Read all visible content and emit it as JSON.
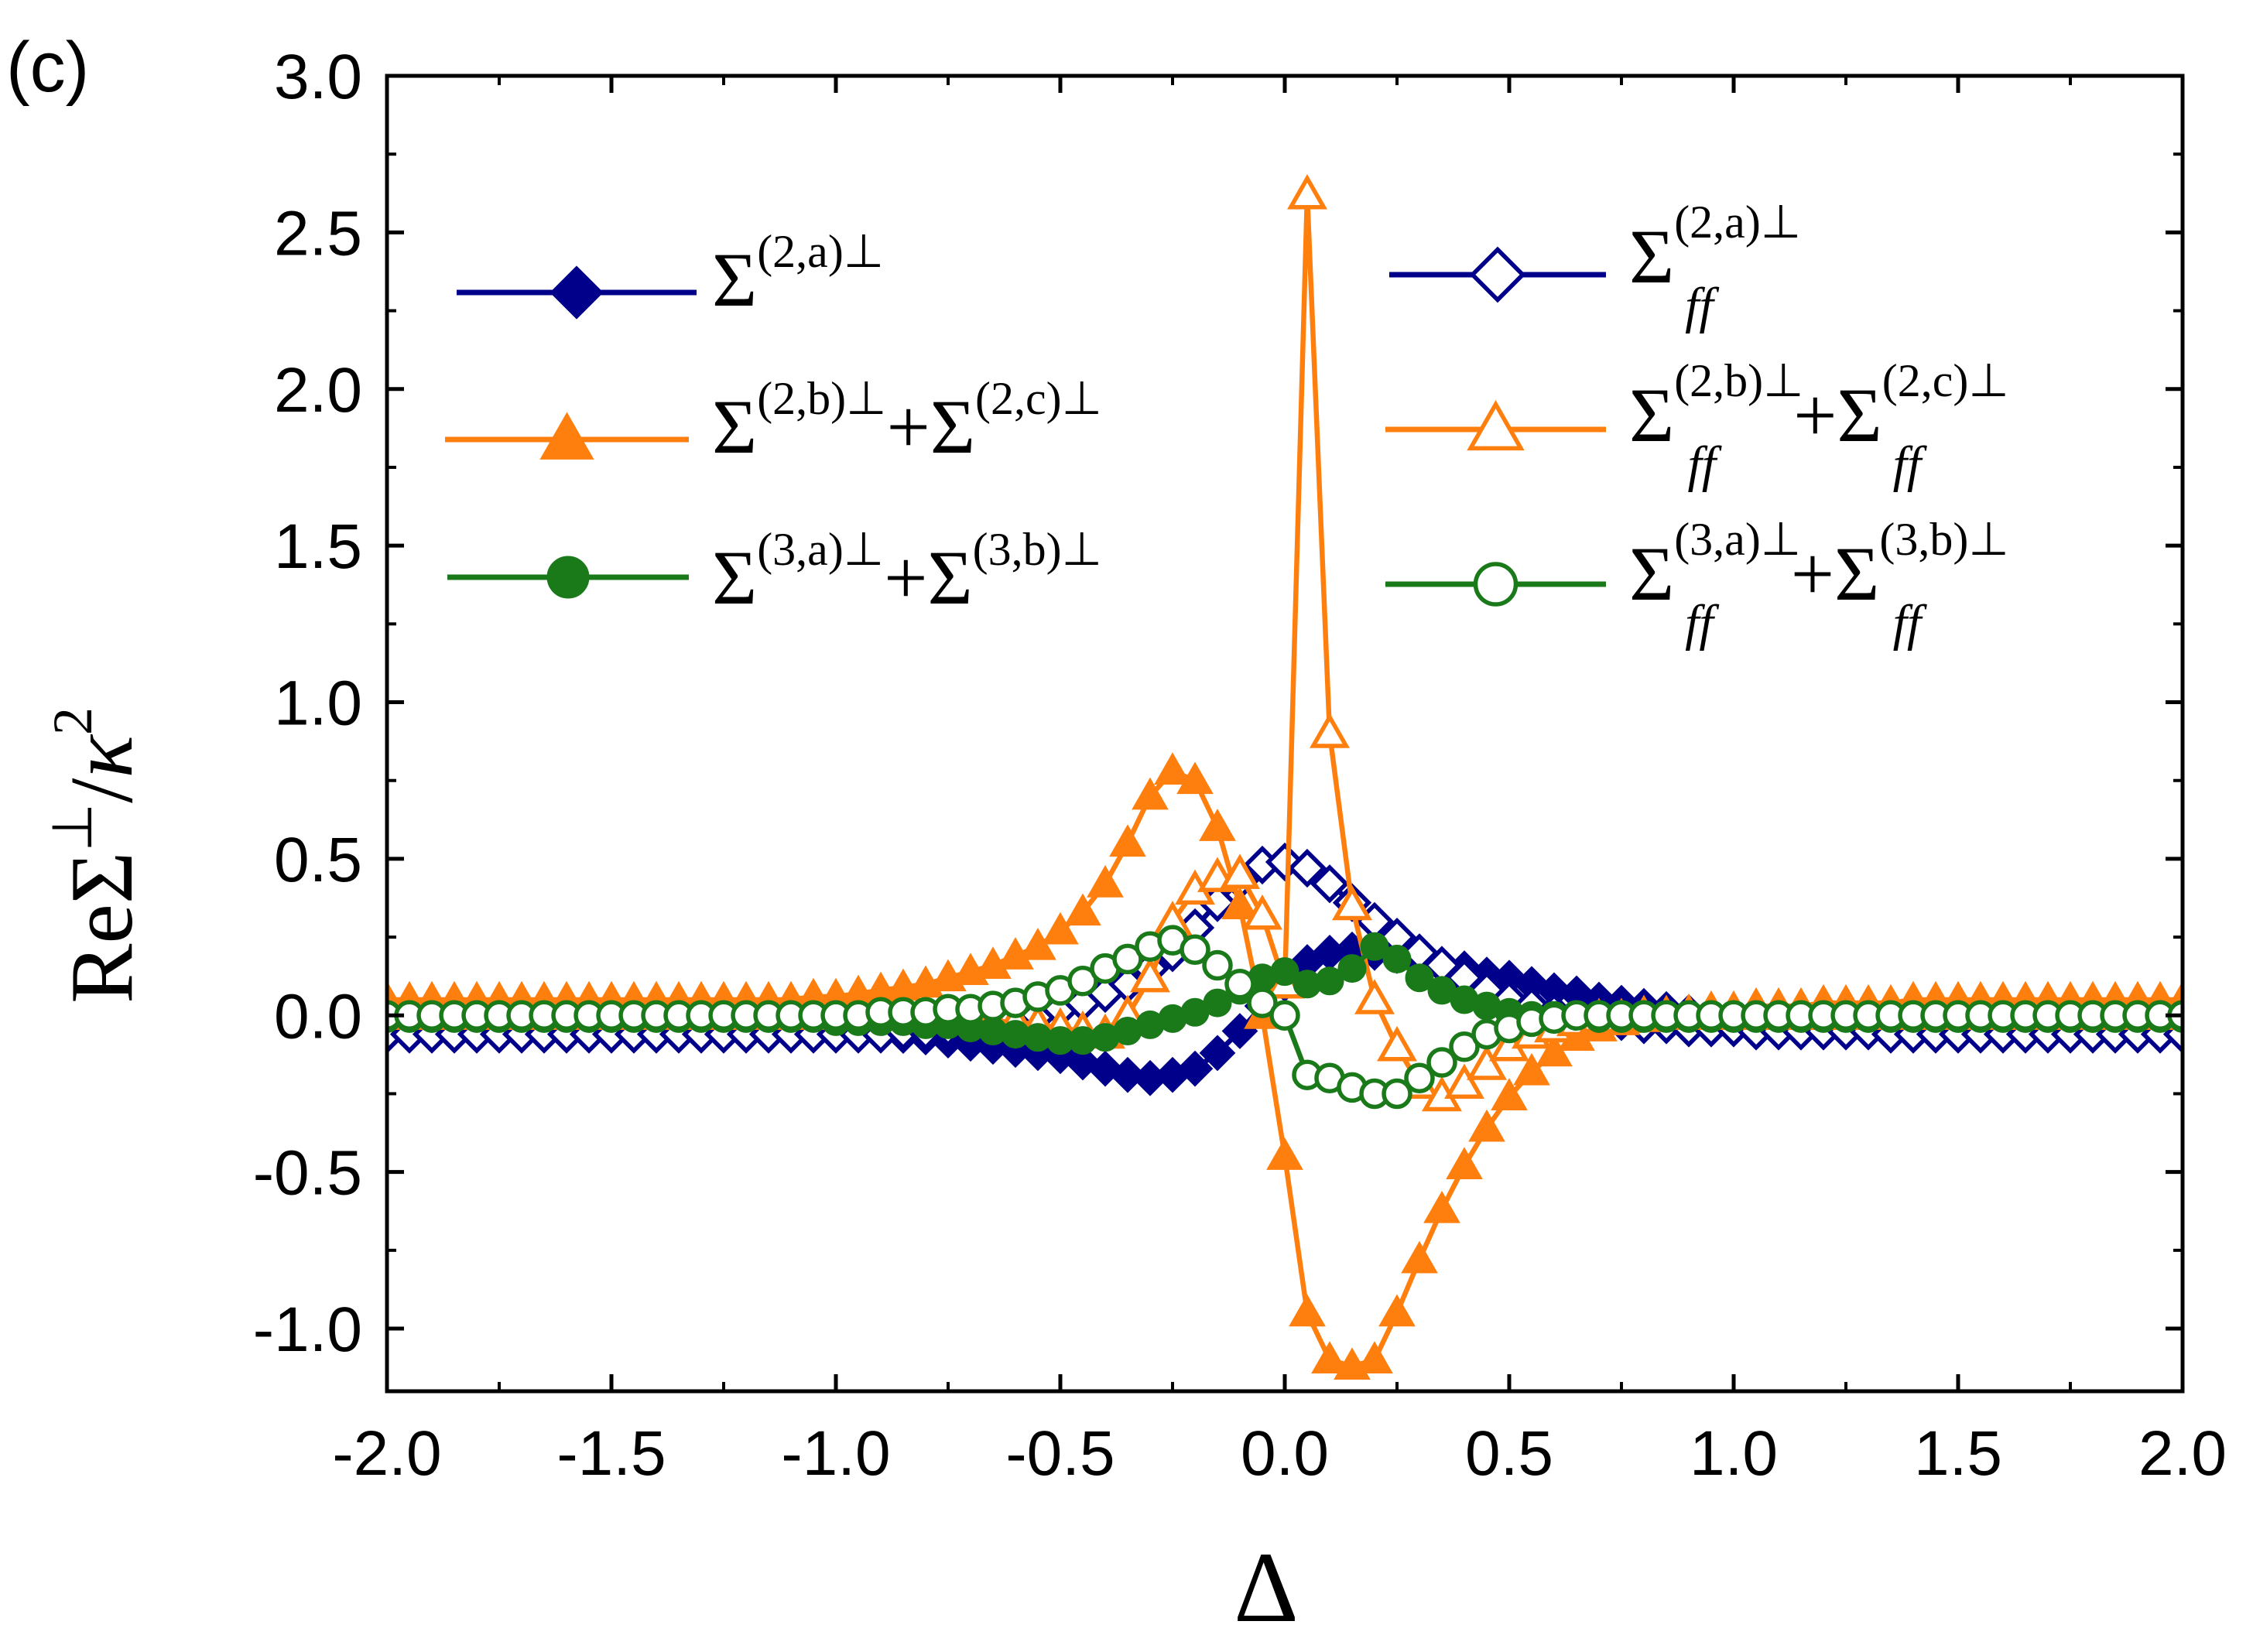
{
  "chart_data": {
    "type": "line",
    "panel_label": "(c)",
    "xlabel": "Δ",
    "ylabel": {
      "prefix": "Re",
      "sigma": "Σ",
      "sup": "⊥",
      "slash": "/",
      "kappa": "κ",
      "power": "2"
    },
    "xlim": [
      -2.0,
      2.0
    ],
    "ylim": [
      -1.2,
      3.0
    ],
    "xticks": [
      -2.0,
      -1.5,
      -1.0,
      -0.5,
      0.0,
      0.5,
      1.0,
      1.5,
      2.0
    ],
    "xtick_labels": [
      "-2.0",
      "-1.5",
      "-1.0",
      "-0.5",
      "0.0",
      "0.5",
      "1.0",
      "1.5",
      "2.0"
    ],
    "yticks": [
      -1.0,
      -0.5,
      0.0,
      0.5,
      1.0,
      1.5,
      2.0,
      2.5,
      3.0
    ],
    "ytick_labels": [
      "-1.0",
      "-0.5",
      "0.0",
      "0.5",
      "1.0",
      "1.5",
      "2.0",
      "2.5",
      "3.0"
    ],
    "colors": {
      "blue": "#00008b",
      "orange": "#ff7f0e",
      "green": "#1a7a1a"
    },
    "x": [
      -2.0,
      -1.95,
      -1.9,
      -1.85,
      -1.8,
      -1.75,
      -1.7,
      -1.65,
      -1.6,
      -1.55,
      -1.5,
      -1.45,
      -1.4,
      -1.35,
      -1.3,
      -1.25,
      -1.2,
      -1.15,
      -1.1,
      -1.05,
      -1.0,
      -0.95,
      -0.9,
      -0.85,
      -0.8,
      -0.75,
      -0.7,
      -0.65,
      -0.6,
      -0.55,
      -0.5,
      -0.45,
      -0.4,
      -0.35,
      -0.3,
      -0.25,
      -0.2,
      -0.15,
      -0.1,
      -0.05,
      0.0,
      0.05,
      0.1,
      0.15,
      0.2,
      0.25,
      0.3,
      0.35,
      0.4,
      0.45,
      0.5,
      0.55,
      0.6,
      0.65,
      0.7,
      0.75,
      0.8,
      0.85,
      0.9,
      0.95,
      1.0,
      1.05,
      1.1,
      1.15,
      1.2,
      1.25,
      1.3,
      1.35,
      1.4,
      1.45,
      1.5,
      1.55,
      1.6,
      1.65,
      1.7,
      1.75,
      1.8,
      1.85,
      1.9,
      1.95,
      2.0
    ],
    "series": [
      {
        "name": "Σ(2,a)⊥",
        "legend": {
          "base": "Σ",
          "sup": "(2,a)⊥",
          "sub": "",
          "plus": "",
          "base2": "",
          "sup2": "",
          "sub2": ""
        },
        "color_key": "blue",
        "marker": "diamond",
        "filled": true,
        "values": [
          -0.06,
          -0.06,
          -0.06,
          -0.06,
          -0.06,
          -0.06,
          -0.06,
          -0.06,
          -0.06,
          -0.06,
          -0.06,
          -0.06,
          -0.06,
          -0.06,
          -0.06,
          -0.06,
          -0.06,
          -0.06,
          -0.06,
          -0.06,
          -0.06,
          -0.06,
          -0.06,
          -0.065,
          -0.07,
          -0.08,
          -0.09,
          -0.1,
          -0.11,
          -0.12,
          -0.13,
          -0.15,
          -0.17,
          -0.19,
          -0.2,
          -0.19,
          -0.17,
          -0.12,
          -0.05,
          0.03,
          0.1,
          0.17,
          0.2,
          0.21,
          0.2,
          0.19,
          0.17,
          0.16,
          0.15,
          0.13,
          0.12,
          0.1,
          0.08,
          0.07,
          0.05,
          0.04,
          0.03,
          0.02,
          0.01,
          0.0,
          -0.01,
          -0.02,
          -0.03,
          -0.03,
          -0.04,
          -0.04,
          -0.05,
          -0.05,
          -0.05,
          -0.05,
          -0.06,
          -0.06,
          -0.06,
          -0.06,
          -0.06,
          -0.06,
          -0.06,
          -0.06,
          -0.06,
          -0.06,
          -0.06
        ]
      },
      {
        "name": "Σ(2,b)⊥+Σ(2,c)⊥",
        "legend": {
          "base": "Σ",
          "sup": "(2,b)⊥",
          "sub": "",
          "plus": "+",
          "base2": "Σ",
          "sup2": "(2,c)⊥",
          "sub2": ""
        },
        "color_key": "orange",
        "marker": "triangle",
        "filled": true,
        "values": [
          0.05,
          0.05,
          0.05,
          0.05,
          0.05,
          0.05,
          0.05,
          0.05,
          0.05,
          0.05,
          0.05,
          0.05,
          0.05,
          0.05,
          0.05,
          0.05,
          0.05,
          0.05,
          0.05,
          0.06,
          0.06,
          0.07,
          0.08,
          0.09,
          0.1,
          0.12,
          0.14,
          0.16,
          0.19,
          0.22,
          0.27,
          0.33,
          0.42,
          0.55,
          0.7,
          0.78,
          0.75,
          0.6,
          0.35,
          0.0,
          -0.45,
          -0.95,
          -1.1,
          -1.12,
          -1.1,
          -0.95,
          -0.78,
          -0.62,
          -0.48,
          -0.36,
          -0.26,
          -0.18,
          -0.12,
          -0.07,
          -0.04,
          -0.02,
          -0.01,
          0.0,
          0.01,
          0.02,
          0.02,
          0.03,
          0.03,
          0.03,
          0.04,
          0.04,
          0.04,
          0.04,
          0.05,
          0.05,
          0.05,
          0.05,
          0.05,
          0.05,
          0.05,
          0.05,
          0.05,
          0.05,
          0.05,
          0.05,
          0.05
        ]
      },
      {
        "name": "Σ(3,a)⊥+Σ(3,b)⊥",
        "legend": {
          "base": "Σ",
          "sup": "(3,a)⊥",
          "sub": "",
          "plus": "+",
          "base2": "Σ",
          "sup2": "(3,b)⊥",
          "sub2": ""
        },
        "color_key": "green",
        "marker": "circle",
        "filled": true,
        "values": [
          -0.01,
          -0.01,
          -0.01,
          -0.01,
          -0.01,
          -0.01,
          -0.01,
          -0.01,
          -0.01,
          -0.01,
          -0.01,
          -0.01,
          -0.01,
          -0.01,
          -0.01,
          -0.01,
          -0.01,
          -0.01,
          -0.01,
          -0.01,
          -0.02,
          -0.02,
          -0.02,
          -0.02,
          -0.03,
          -0.03,
          -0.04,
          -0.05,
          -0.06,
          -0.07,
          -0.08,
          -0.08,
          -0.07,
          -0.05,
          -0.03,
          -0.01,
          0.01,
          0.04,
          0.08,
          0.12,
          0.14,
          0.1,
          0.11,
          0.15,
          0.22,
          0.18,
          0.12,
          0.08,
          0.05,
          0.03,
          0.01,
          0.0,
          0.0,
          0.0,
          -0.01,
          -0.01,
          -0.01,
          -0.01,
          -0.01,
          -0.01,
          -0.01,
          -0.01,
          -0.01,
          -0.01,
          -0.01,
          -0.01,
          -0.01,
          -0.01,
          -0.01,
          -0.01,
          -0.01,
          -0.01,
          -0.01,
          -0.01,
          -0.01,
          -0.01,
          -0.01,
          -0.01,
          -0.01,
          -0.01,
          -0.01
        ]
      },
      {
        "name": "Σff(2,a)⊥",
        "legend": {
          "base": "Σ",
          "sup": "(2,a)⊥",
          "sub": "ff",
          "plus": "",
          "base2": "",
          "sup2": "",
          "sub2": ""
        },
        "color_key": "blue",
        "marker": "diamond",
        "filled": false,
        "values": [
          -0.06,
          -0.06,
          -0.06,
          -0.06,
          -0.06,
          -0.06,
          -0.06,
          -0.06,
          -0.06,
          -0.06,
          -0.06,
          -0.06,
          -0.06,
          -0.06,
          -0.06,
          -0.06,
          -0.06,
          -0.06,
          -0.06,
          -0.06,
          -0.06,
          -0.06,
          -0.06,
          -0.05,
          -0.05,
          -0.04,
          -0.03,
          -0.02,
          -0.01,
          0.0,
          0.02,
          0.04,
          0.07,
          0.1,
          0.15,
          0.2,
          0.28,
          0.36,
          0.43,
          0.48,
          0.49,
          0.47,
          0.42,
          0.36,
          0.3,
          0.25,
          0.2,
          0.16,
          0.12,
          0.08,
          0.05,
          0.03,
          0.01,
          0.0,
          -0.01,
          -0.02,
          -0.03,
          -0.03,
          -0.04,
          -0.04,
          -0.04,
          -0.05,
          -0.05,
          -0.05,
          -0.05,
          -0.05,
          -0.05,
          -0.06,
          -0.06,
          -0.06,
          -0.06,
          -0.06,
          -0.06,
          -0.06,
          -0.06,
          -0.06,
          -0.06,
          -0.06,
          -0.06,
          -0.06,
          -0.06
        ]
      },
      {
        "name": "Σff(2,b)⊥+Σff(2,c)⊥",
        "legend": {
          "base": "Σ",
          "sup": "(2,b)⊥",
          "sub": "ff",
          "plus": "+",
          "base2": "Σ",
          "sup2": "(2,c)⊥",
          "sub2": "ff"
        },
        "color_key": "orange",
        "marker": "triangle",
        "filled": false,
        "values": [
          0.0,
          0.0,
          0.0,
          0.0,
          0.0,
          0.0,
          0.0,
          0.0,
          0.0,
          0.0,
          0.0,
          0.0,
          0.0,
          0.0,
          0.0,
          0.0,
          0.0,
          0.0,
          0.0,
          0.0,
          0.0,
          0.0,
          0.0,
          0.0,
          0.0,
          -0.01,
          -0.01,
          -0.02,
          -0.02,
          -0.03,
          -0.04,
          -0.05,
          -0.06,
          0.0,
          0.12,
          0.3,
          0.4,
          0.44,
          0.45,
          0.32,
          0.1,
          2.62,
          0.9,
          0.35,
          0.05,
          -0.1,
          -0.22,
          -0.26,
          -0.22,
          -0.16,
          -0.1,
          -0.06,
          -0.04,
          -0.02,
          -0.01,
          -0.01,
          0.0,
          0.0,
          0.0,
          0.0,
          0.0,
          0.0,
          0.0,
          0.0,
          0.0,
          0.0,
          0.0,
          0.0,
          0.0,
          0.0,
          0.0,
          0.0,
          0.0,
          0.0,
          0.0,
          0.0,
          0.0,
          0.0,
          0.0,
          0.0,
          0.0
        ]
      },
      {
        "name": "Σff(3,a)⊥+Σff(3,b)⊥",
        "legend": {
          "base": "Σ",
          "sup": "(3,a)⊥",
          "sub": "ff",
          "plus": "+",
          "base2": "Σ",
          "sup2": "(3,b)⊥",
          "sub2": "ff"
        },
        "color_key": "green",
        "marker": "circle",
        "filled": false,
        "values": [
          0.0,
          0.0,
          0.0,
          0.0,
          0.0,
          0.0,
          0.0,
          0.0,
          0.0,
          0.0,
          0.0,
          0.0,
          0.0,
          0.0,
          0.0,
          0.0,
          0.0,
          0.0,
          0.0,
          0.0,
          0.0,
          0.0,
          0.01,
          0.01,
          0.01,
          0.02,
          0.02,
          0.03,
          0.04,
          0.06,
          0.08,
          0.11,
          0.15,
          0.18,
          0.22,
          0.24,
          0.21,
          0.16,
          0.1,
          0.04,
          0.0,
          -0.19,
          -0.2,
          -0.23,
          -0.25,
          -0.25,
          -0.2,
          -0.15,
          -0.1,
          -0.06,
          -0.04,
          -0.02,
          -0.01,
          0.0,
          0.0,
          0.0,
          0.0,
          0.0,
          0.0,
          0.0,
          0.0,
          0.0,
          0.0,
          0.0,
          0.0,
          0.0,
          0.0,
          0.0,
          0.0,
          0.0,
          0.0,
          0.0,
          0.0,
          0.0,
          0.0,
          0.0,
          0.0,
          0.0,
          0.0,
          0.0,
          0.0
        ]
      }
    ]
  }
}
